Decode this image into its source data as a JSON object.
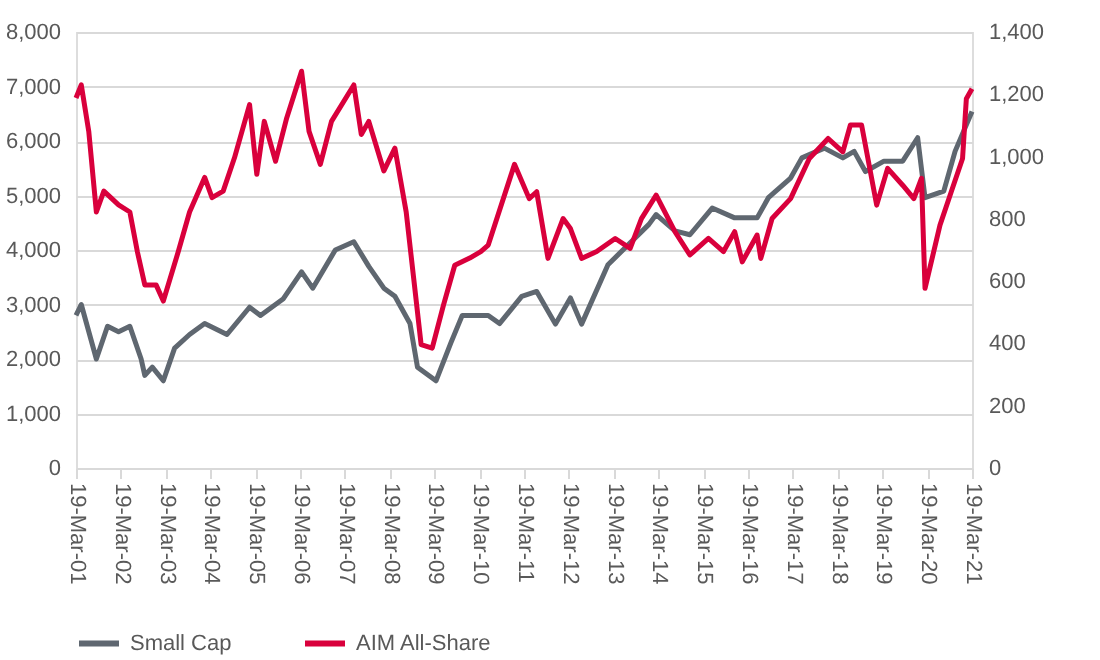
{
  "chart_data": {
    "type": "line",
    "xlim": [
      "2001-03-19",
      "2021-03-19"
    ],
    "xticks": [
      {
        "value": "2001-03-19",
        "label": "19-Mar-01"
      },
      {
        "value": "2002-03-19",
        "label": "19-Mar-02"
      },
      {
        "value": "2003-03-19",
        "label": "19-Mar-03"
      },
      {
        "value": "2004-03-19",
        "label": "19-Mar-04"
      },
      {
        "value": "2005-03-19",
        "label": "19-Mar-05"
      },
      {
        "value": "2006-03-19",
        "label": "19-Mar-06"
      },
      {
        "value": "2007-03-19",
        "label": "19-Mar-07"
      },
      {
        "value": "2008-03-19",
        "label": "19-Mar-08"
      },
      {
        "value": "2009-03-19",
        "label": "19-Mar-09"
      },
      {
        "value": "2010-03-19",
        "label": "19-Mar-10"
      },
      {
        "value": "2011-03-19",
        "label": "19-Mar-11"
      },
      {
        "value": "2012-03-19",
        "label": "19-Mar-12"
      },
      {
        "value": "2013-03-19",
        "label": "19-Mar-13"
      },
      {
        "value": "2014-03-19",
        "label": "19-Mar-14"
      },
      {
        "value": "2015-03-19",
        "label": "19-Mar-15"
      },
      {
        "value": "2016-03-19",
        "label": "19-Mar-16"
      },
      {
        "value": "2017-03-19",
        "label": "19-Mar-17"
      },
      {
        "value": "2018-03-19",
        "label": "19-Mar-18"
      },
      {
        "value": "2019-03-19",
        "label": "19-Mar-19"
      },
      {
        "value": "2020-03-19",
        "label": "19-Mar-20"
      },
      {
        "value": "2021-03-19",
        "label": "19-Mar-21"
      }
    ],
    "ylim": [
      0,
      8000
    ],
    "yticks": [
      {
        "value": 0,
        "label": "0"
      },
      {
        "value": 1000,
        "label": "1,000"
      },
      {
        "value": 2000,
        "label": "2,000"
      },
      {
        "value": 3000,
        "label": "3,000"
      },
      {
        "value": 4000,
        "label": "4,000"
      },
      {
        "value": 5000,
        "label": "5,000"
      },
      {
        "value": 6000,
        "label": "6,000"
      },
      {
        "value": 7000,
        "label": "7,000"
      },
      {
        "value": 8000,
        "label": "8,000"
      }
    ],
    "y2lim": [
      0,
      1400
    ],
    "y2ticks": [
      {
        "value": 0,
        "label": "0"
      },
      {
        "value": 200,
        "label": "200"
      },
      {
        "value": 400,
        "label": "400"
      },
      {
        "value": 600,
        "label": "600"
      },
      {
        "value": 800,
        "label": "800"
      },
      {
        "value": 1000,
        "label": "1,000"
      },
      {
        "value": 1200,
        "label": "1,200"
      },
      {
        "value": 1400,
        "label": "1,400"
      }
    ],
    "grid": "y",
    "legend": "bottom",
    "marker": "none",
    "line_style": "solid",
    "series": [
      {
        "name": "Small Cap",
        "color": "#5f6770",
        "x": [
          "2001-03-19",
          "2001-05",
          "2001-09",
          "2001-12",
          "2002-03",
          "2002-06",
          "2002-09",
          "2002-10",
          "2002-12",
          "2003-03",
          "2003-06",
          "2003-10",
          "2004-02",
          "2004-08",
          "2005-02",
          "2005-05",
          "2005-11",
          "2006-04",
          "2006-07",
          "2007-01",
          "2007-06",
          "2007-10",
          "2008-02",
          "2008-05",
          "2008-09",
          "2008-11",
          "2009-04",
          "2009-08",
          "2009-11",
          "2010-06",
          "2010-09",
          "2011-03",
          "2011-07",
          "2011-12",
          "2012-04",
          "2012-07",
          "2013-02",
          "2014-01",
          "2014-03",
          "2014-08",
          "2014-12",
          "2015-06",
          "2015-12",
          "2016-06",
          "2016-09",
          "2017-03",
          "2017-06",
          "2017-12",
          "2018-05",
          "2018-08",
          "2018-11",
          "2019-04",
          "2019-09",
          "2020-01",
          "2020-03",
          "2020-08",
          "2020-11",
          "2021-03-19"
        ],
        "values": [
          2800,
          3000,
          2000,
          2600,
          2500,
          2600,
          2000,
          1700,
          1850,
          1600,
          2200,
          2450,
          2650,
          2450,
          2950,
          2800,
          3100,
          3600,
          3300,
          4000,
          4150,
          3700,
          3300,
          3150,
          2650,
          1850,
          1600,
          2300,
          2800,
          2800,
          2650,
          3150,
          3240,
          2640,
          3120,
          2640,
          3730,
          4470,
          4650,
          4350,
          4280,
          4770,
          4590,
          4590,
          4960,
          5320,
          5690,
          5870,
          5690,
          5810,
          5440,
          5630,
          5630,
          6060,
          4960,
          5080,
          5810,
          6540
        ]
      },
      {
        "name": "AIM All-Share",
        "color": "#d9003c",
        "axis": "y2",
        "x": [
          "2001-03-19",
          "2001-05",
          "2001-07",
          "2001-09",
          "2001-11",
          "2002-03",
          "2002-06",
          "2002-08",
          "2002-10",
          "2003-01",
          "2003-03",
          "2003-07",
          "2003-10",
          "2004-02",
          "2004-04",
          "2004-07",
          "2004-10",
          "2005-02",
          "2005-04",
          "2005-06",
          "2005-09",
          "2005-12",
          "2006-04",
          "2006-06",
          "2006-09",
          "2006-12",
          "2007-06",
          "2007-08",
          "2007-10",
          "2008-02",
          "2008-05",
          "2008-08",
          "2008-10",
          "2008-12",
          "2009-03",
          "2009-06",
          "2009-09",
          "2010-01",
          "2010-04",
          "2010-06",
          "2011-01",
          "2011-05",
          "2011-07",
          "2011-10",
          "2012-02",
          "2012-04",
          "2012-07",
          "2012-11",
          "2013-04",
          "2013-08",
          "2013-11",
          "2014-03",
          "2014-08",
          "2014-12",
          "2015-05",
          "2015-09",
          "2015-12",
          "2016-02",
          "2016-06",
          "2016-07",
          "2016-10",
          "2017-03",
          "2017-08",
          "2018-01",
          "2018-05",
          "2018-07",
          "2018-10",
          "2019-02",
          "2019-05",
          "2019-09",
          "2019-12",
          "2020-02",
          "2020-03",
          "2020-07",
          "2020-10",
          "2021-01",
          "2021-02",
          "2021-03-19"
        ],
        "values": [
          1188,
          1230,
          1081,
          822,
          889,
          845,
          822,
          695,
          588,
          588,
          536,
          695,
          822,
          933,
          868,
          889,
          996,
          1167,
          943,
          1113,
          985,
          1124,
          1274,
          1081,
          975,
          1113,
          1230,
          1071,
          1113,
          954,
          1027,
          822,
          609,
          396,
          385,
          523,
          651,
          674,
          695,
          716,
          975,
          865,
          887,
          673,
          801,
          769,
          673,
          695,
          737,
          705,
          801,
          876,
          759,
          684,
          737,
          695,
          759,
          662,
          748,
          673,
          801,
          865,
          994,
          1058,
          1015,
          1101,
          1101,
          844,
          962,
          908,
          865,
          930,
          577,
          780,
          887,
          994,
          1186,
          1218
        ]
      }
    ]
  }
}
